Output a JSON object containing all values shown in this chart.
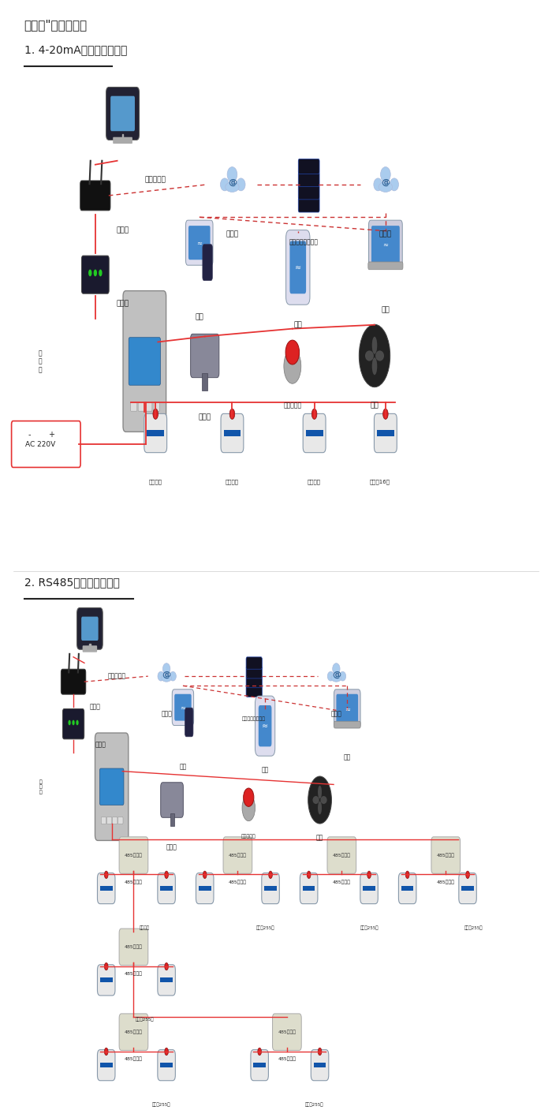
{
  "title1": "机气猫””系列报警器",
  "section1": "1. 4-20mA信号连接系统图",
  "section2": "2. RS485信号连接系统图",
  "bg_color": "#ffffff",
  "line_color_red": "#e63333",
  "line_color_dashed": "#cc3333",
  "text_color": "#222222"
}
